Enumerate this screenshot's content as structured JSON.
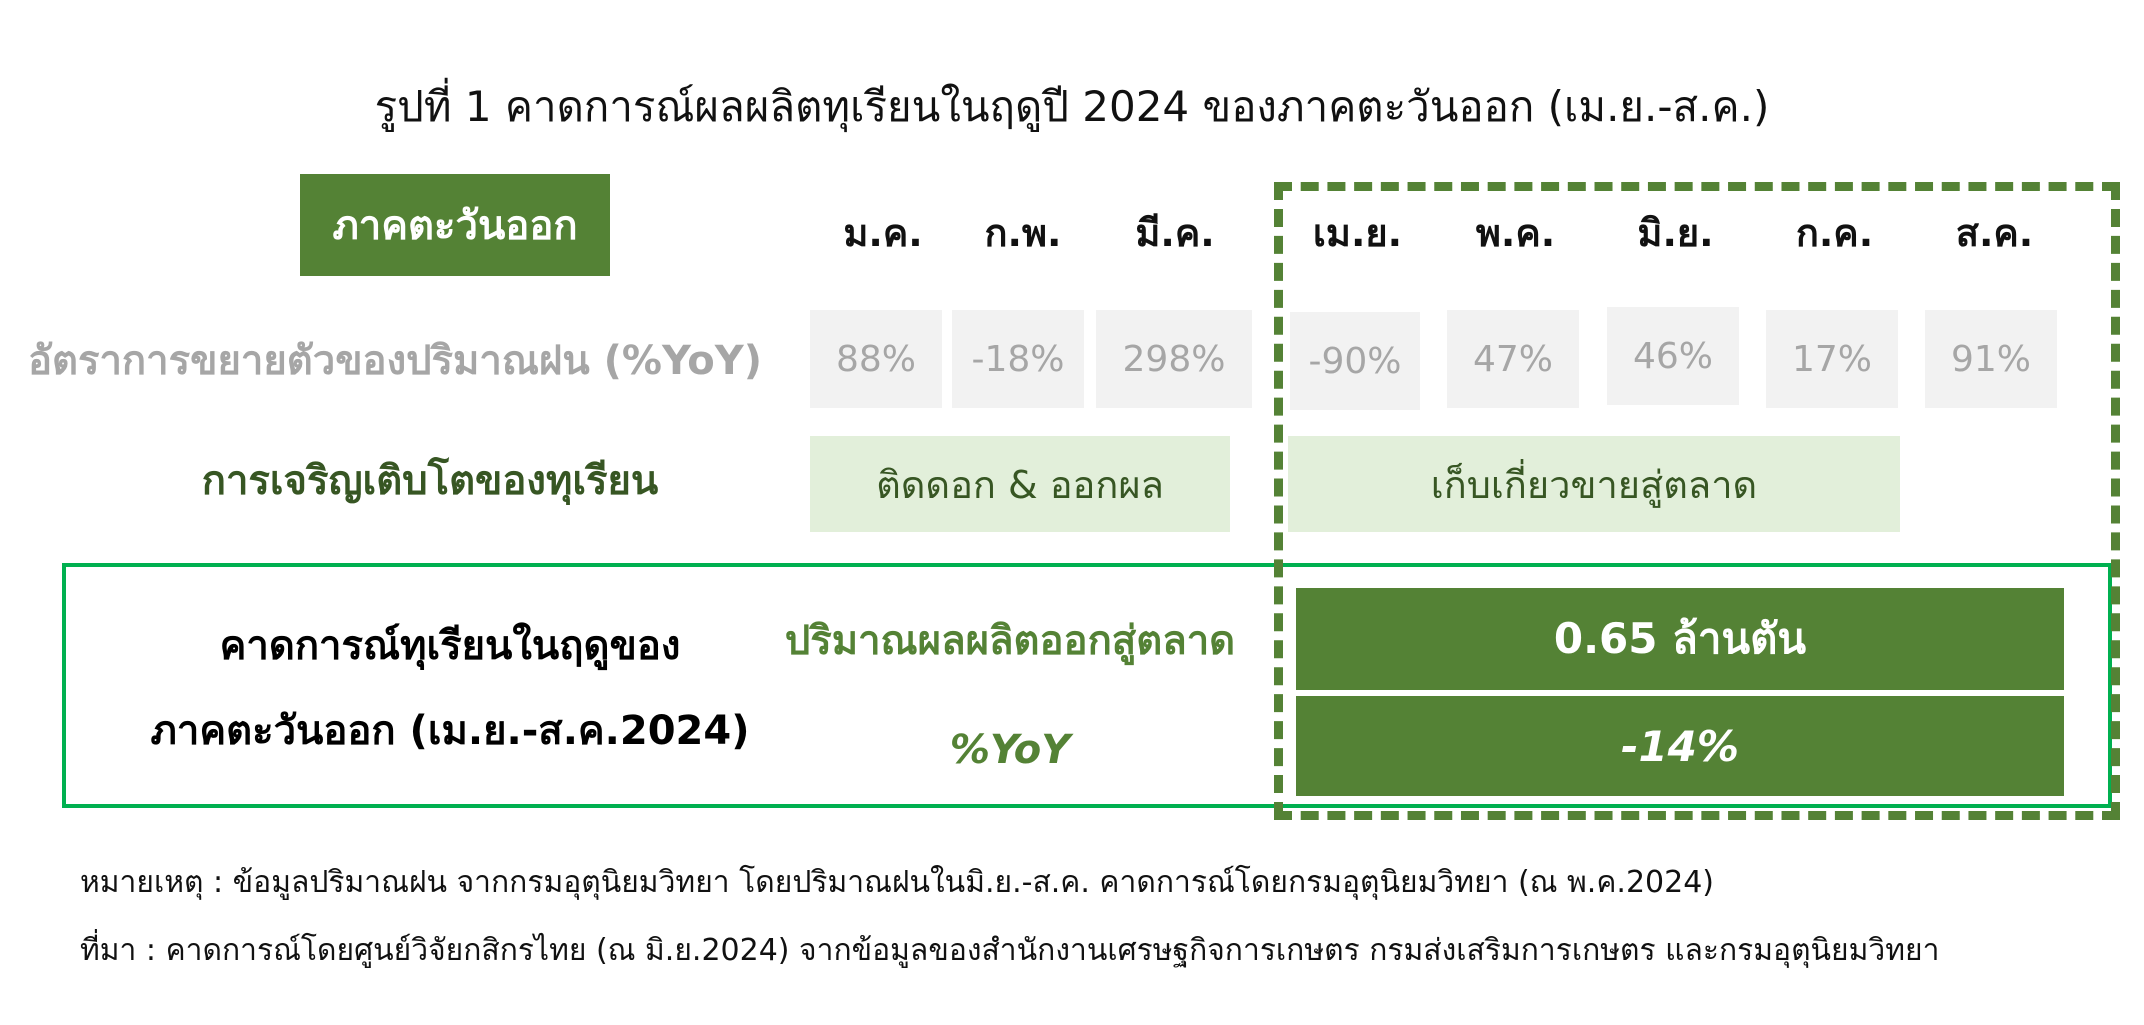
{
  "title": "รูปที่ 1 คาดการณ์ผลผลิตทุเรียนในฤดูปี 2024 ของภาคตะวันออก (เม.ย.-ส.ค.)",
  "region_header": "ภาคตะวันออก",
  "months": [
    "ม.ค.",
    "ก.พ.",
    "มี.ค.",
    "เม.ย.",
    "พ.ค.",
    "มิ.ย.",
    "ก.ค.",
    "ส.ค."
  ],
  "rainfall": {
    "label": "อัตราการขยายตัวของปริมาณฝน (%YoY)",
    "values": [
      "88%",
      "-18%",
      "298%",
      "-90%",
      "47%",
      "46%",
      "17%",
      "91%"
    ]
  },
  "growth": {
    "label": "การเจริญเติบโตของทุเรียน",
    "stages": [
      "ติดดอก & ออกผล",
      "เก็บเกี่ยวขายสู่ตลาด"
    ]
  },
  "forecast": {
    "title_line1": "คาดการณ์ทุเรียนในฤดูของ",
    "title_line2": "ภาคตะวันออก (เม.ย.-ส.ค.2024)",
    "volume_label": "ปริมาณผลผลิตออกสู่ตลาด",
    "volume_value": "0.65 ล้านตัน",
    "yoy_label": "%YoY",
    "yoy_value": "-14%"
  },
  "notes": {
    "note": "หมายเหตุ : ข้อมูลปริมาณฝน จากกรมอุตุนิยมวิทยา โดยปริมาณฝนในมิ.ย.-ส.ค. คาดการณ์โดยกรมอุตุนิยมวิทยา (ณ พ.ค.2024)",
    "source": "ที่มา : คาดการณ์โดยศูนย์วิจัยกสิกรไทย (ณ มิ.ย.2024) จากข้อมูลของสำนักงานเศรษฐกิจการเกษตร กรมส่งเสริมการเกษตร และกรมอุตุนิยมวิทยา"
  },
  "colors": {
    "dark_green": "#548235",
    "label_green": "#375623",
    "light_green": "#e2efda",
    "border_green": "#00b050",
    "grey_cell": "#f2f2f2",
    "grey_text": "#a6a6a6"
  }
}
